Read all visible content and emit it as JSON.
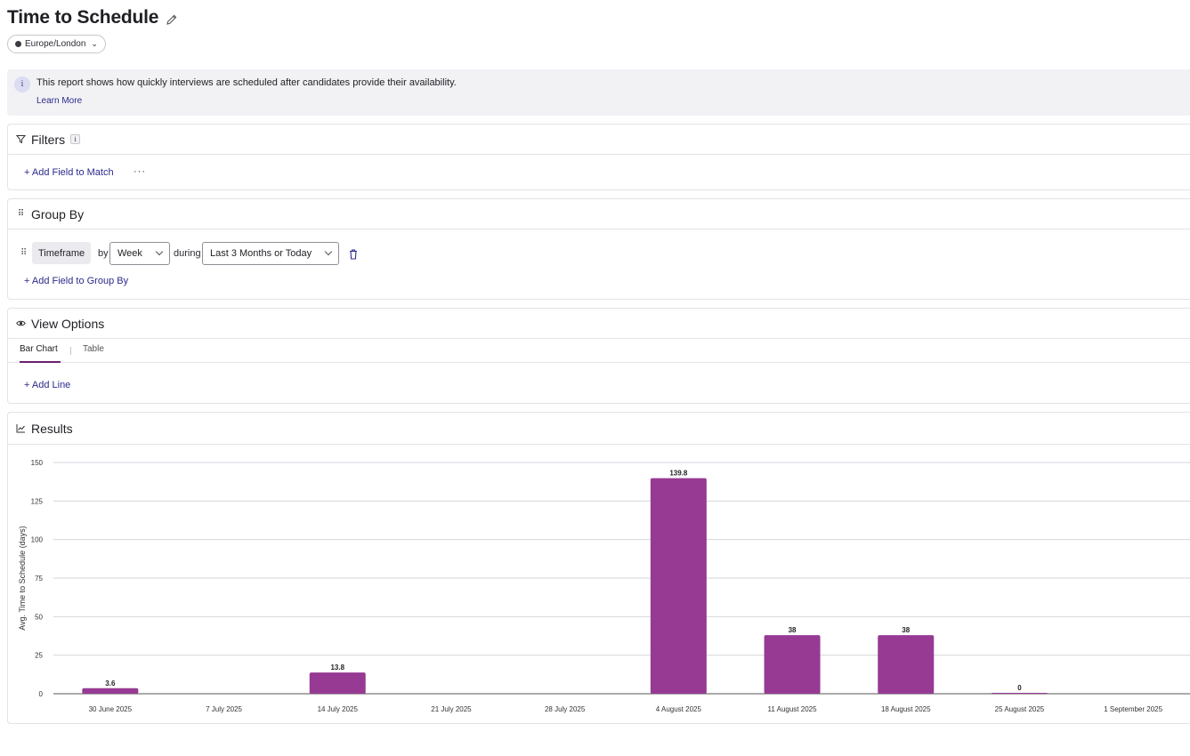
{
  "header": {
    "title": "Time to Schedule"
  },
  "timezone": {
    "value": "Europe/London"
  },
  "info": {
    "text": "This report shows how quickly interviews are scheduled after candidates provide their availability.",
    "link": "Learn More"
  },
  "filters": {
    "title": "Filters",
    "add_label": "+ Add Field to Match",
    "more": "···"
  },
  "group_by": {
    "title": "Group By",
    "field": "Timeframe",
    "by_word": "by",
    "interval": "Week",
    "during_word": "during",
    "range": "Last 3 Months or Today",
    "add_label": "+ Add Field to Group By"
  },
  "view_options": {
    "title": "View Options",
    "tabs": [
      {
        "label": "Bar Chart",
        "active": true
      },
      {
        "label": "Table",
        "active": false
      }
    ],
    "add_line": "+ Add Line"
  },
  "results": {
    "title": "Results"
  },
  "colors": {
    "bar": "#973a93",
    "accent_text": "#2c2a8c"
  },
  "chart_data": {
    "type": "bar",
    "ylabel": "Avg. Time to Schedule (days)",
    "xlabel": "",
    "ylim": [
      0,
      150
    ],
    "yticks": [
      0,
      25,
      50,
      75,
      100,
      125,
      150
    ],
    "grid": true,
    "categories": [
      "30 June 2025",
      "7 July 2025",
      "14 July 2025",
      "21 July 2025",
      "28 July 2025",
      "4 August 2025",
      "11 August 2025",
      "18 August 2025",
      "25 August 2025",
      "1 September 2025"
    ],
    "values": [
      3.6,
      null,
      13.8,
      null,
      null,
      139.8,
      38,
      38,
      0,
      null
    ],
    "labels": [
      "3.6",
      "",
      "13.8",
      "",
      "",
      "139.8",
      "38",
      "38",
      "0",
      ""
    ]
  }
}
